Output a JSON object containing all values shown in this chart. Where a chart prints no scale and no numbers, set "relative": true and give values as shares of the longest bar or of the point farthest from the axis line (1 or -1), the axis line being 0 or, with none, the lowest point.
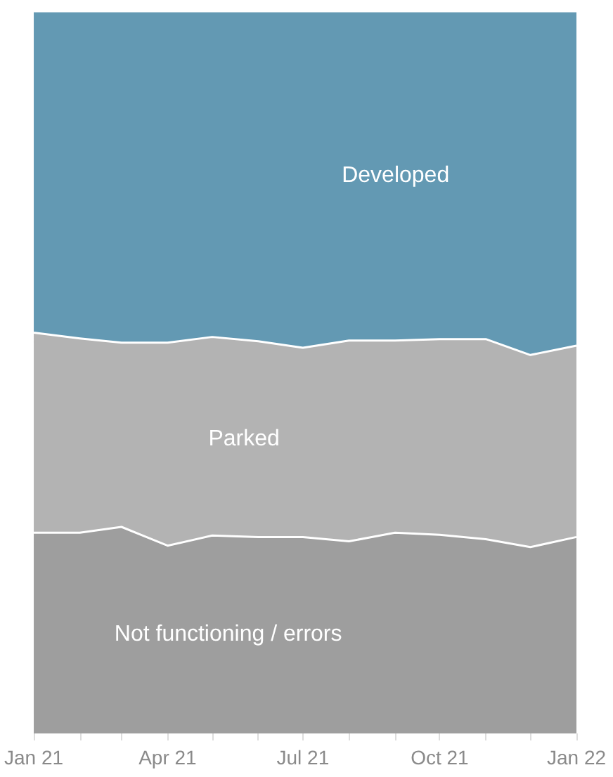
{
  "chart_data": {
    "type": "area",
    "stacked": true,
    "relative": true,
    "legend": false,
    "grid": false,
    "x": [
      "2021-01",
      "2021-02",
      "2021-03",
      "2021-04",
      "2021-05",
      "2021-06",
      "2021-07",
      "2021-08",
      "2021-09",
      "2021-10",
      "2021-11",
      "2021-12",
      "2022-01"
    ],
    "xlim": [
      "2021-01",
      "2022-01"
    ],
    "xticks": [
      {
        "value": "2021-01",
        "label": "Jan 21"
      },
      {
        "value": "2021-02",
        "label": null
      },
      {
        "value": "2021-03",
        "label": null
      },
      {
        "value": "2021-04",
        "label": "Apr 21"
      },
      {
        "value": "2021-05",
        "label": null
      },
      {
        "value": "2021-06",
        "label": null
      },
      {
        "value": "2021-07",
        "label": "Jul 21"
      },
      {
        "value": "2021-08",
        "label": null
      },
      {
        "value": "2021-09",
        "label": null
      },
      {
        "value": "2021-10",
        "label": "Oct 21"
      },
      {
        "value": "2021-11",
        "label": null
      },
      {
        "value": "2021-12",
        "label": null
      },
      {
        "value": "2022-01",
        "label": "Jan 22"
      }
    ],
    "series": [
      {
        "name": "Not functioning / errors",
        "color": "#9e9e9e",
        "values": [
          0.278,
          0.278,
          0.286,
          0.26,
          0.274,
          0.272,
          0.272,
          0.266,
          0.278,
          0.275,
          0.269,
          0.258,
          0.272
        ]
      },
      {
        "name": "Parked",
        "color": "#b3b3b3",
        "values": [
          0.277,
          0.269,
          0.255,
          0.281,
          0.275,
          0.271,
          0.262,
          0.278,
          0.266,
          0.271,
          0.277,
          0.266,
          0.265
        ]
      },
      {
        "name": "Developed",
        "color": "#6399b3",
        "values": [
          0.445,
          0.453,
          0.459,
          0.459,
          0.451,
          0.457,
          0.466,
          0.456,
          0.456,
          0.454,
          0.454,
          0.476,
          0.463
        ]
      }
    ]
  }
}
